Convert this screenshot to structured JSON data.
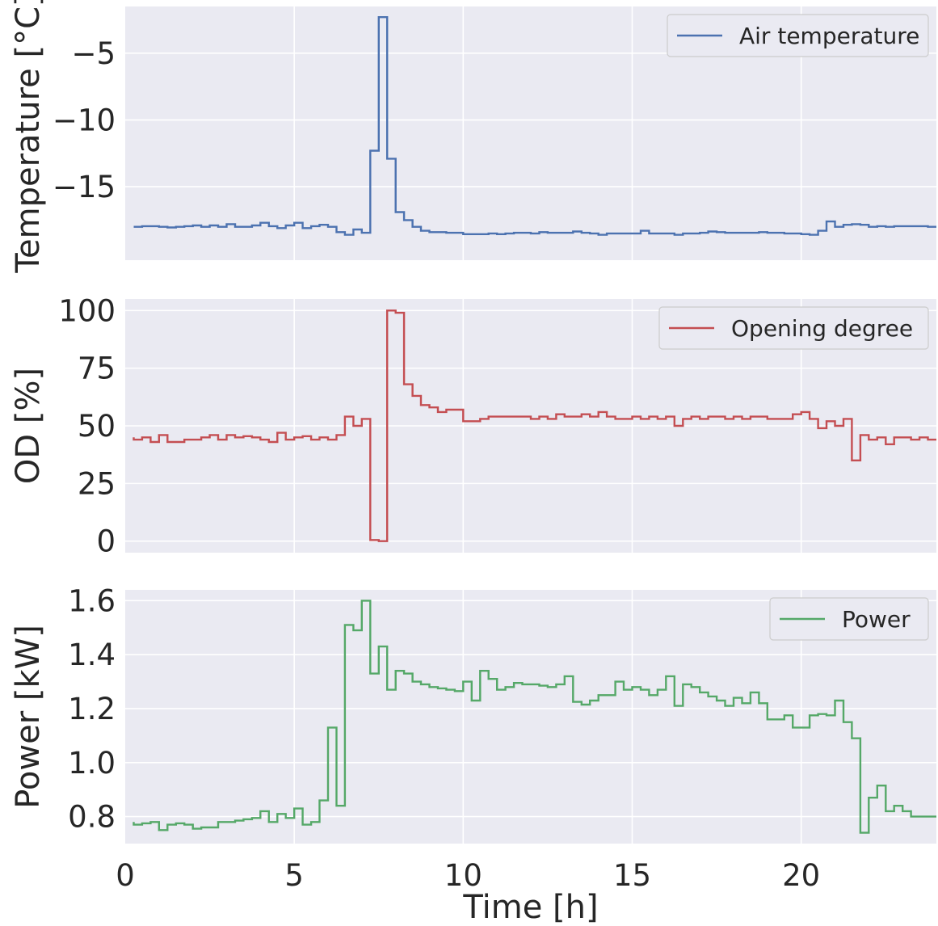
{
  "chart_data": [
    {
      "type": "line",
      "step": true,
      "color": "#4c72b0",
      "ylabel": "Temperature [°C]",
      "xlabel": "",
      "xlim": [
        0,
        24
      ],
      "ylim": [
        -20.5,
        -1.5
      ],
      "yticks": [
        -5,
        -10,
        -15
      ],
      "ytick_labels": [
        "−5",
        "−10",
        "−15"
      ],
      "xticks": [
        5,
        10,
        15,
        20
      ],
      "xtick_labels": [],
      "grid": true,
      "legend_position": "top-right",
      "series": [
        {
          "name": "Air temperature",
          "x": [
            0.25,
            0.5,
            0.75,
            1,
            1.25,
            1.5,
            1.75,
            2,
            2.25,
            2.5,
            2.75,
            3,
            3.25,
            3.5,
            3.75,
            4,
            4.25,
            4.5,
            4.75,
            5,
            5.25,
            5.5,
            5.75,
            6,
            6.25,
            6.5,
            6.75,
            7,
            7.25,
            7.5,
            7.75,
            8,
            8.25,
            8.5,
            8.75,
            9,
            9.25,
            9.5,
            9.75,
            10,
            10.25,
            10.5,
            10.75,
            11,
            11.25,
            11.5,
            11.75,
            12,
            12.25,
            12.5,
            12.75,
            13,
            13.25,
            13.5,
            13.75,
            14,
            14.25,
            14.5,
            14.75,
            15,
            15.25,
            15.5,
            15.75,
            16,
            16.25,
            16.5,
            16.75,
            17,
            17.25,
            17.5,
            17.75,
            18,
            18.25,
            18.5,
            18.75,
            19,
            19.25,
            19.5,
            19.75,
            20,
            20.25,
            20.5,
            20.75,
            21,
            21.25,
            21.5,
            21.75,
            22,
            22.25,
            22.5,
            22.75,
            23,
            23.25,
            23.5,
            23.75,
            24
          ],
          "y": [
            -18.0,
            -18.0,
            -17.95,
            -17.95,
            -18.0,
            -18.05,
            -18.0,
            -17.95,
            -17.9,
            -18.0,
            -17.9,
            -18.0,
            -17.8,
            -18.0,
            -18.0,
            -17.9,
            -17.7,
            -17.95,
            -18.1,
            -17.9,
            -17.7,
            -18.1,
            -17.95,
            -17.85,
            -18.0,
            -18.4,
            -18.6,
            -18.2,
            -18.45,
            -12.3,
            -2.3,
            -12.9,
            -16.9,
            -17.5,
            -18.0,
            -18.3,
            -18.4,
            -18.4,
            -18.45,
            -18.45,
            -18.55,
            -18.55,
            -18.55,
            -18.5,
            -18.55,
            -18.5,
            -18.45,
            -18.45,
            -18.5,
            -18.4,
            -18.45,
            -18.45,
            -18.45,
            -18.35,
            -18.45,
            -18.5,
            -18.6,
            -18.5,
            -18.5,
            -18.5,
            -18.5,
            -18.3,
            -18.5,
            -18.5,
            -18.5,
            -18.6,
            -18.5,
            -18.5,
            -18.45,
            -18.35,
            -18.4,
            -18.45,
            -18.45,
            -18.45,
            -18.45,
            -18.4,
            -18.45,
            -18.45,
            -18.5,
            -18.5,
            -18.55,
            -18.6,
            -18.3,
            -17.6,
            -18.0,
            -17.85,
            -17.8,
            -17.85,
            -18.0,
            -17.95,
            -18.0,
            -17.95,
            -17.95,
            -17.95,
            -17.95,
            -18.0
          ]
        }
      ]
    },
    {
      "type": "line",
      "step": true,
      "color": "#c44e52",
      "ylabel": "OD [%]",
      "xlabel": "",
      "xlim": [
        0,
        24
      ],
      "ylim": [
        -5,
        105
      ],
      "yticks": [
        100,
        75,
        50,
        25,
        0
      ],
      "ytick_labels": [
        "100",
        "75",
        "50",
        "25",
        "0"
      ],
      "xticks": [
        5,
        10,
        15,
        20
      ],
      "xtick_labels": [],
      "grid": true,
      "legend_position": "top-right",
      "series": [
        {
          "name": "Opening degree",
          "x": [
            0.25,
            0.5,
            0.75,
            1,
            1.25,
            1.5,
            1.75,
            2,
            2.25,
            2.5,
            2.75,
            3,
            3.25,
            3.5,
            3.75,
            4,
            4.25,
            4.5,
            4.75,
            5,
            5.25,
            5.5,
            5.75,
            6,
            6.25,
            6.5,
            6.75,
            7,
            7.25,
            7.5,
            7.75,
            8,
            8.25,
            8.5,
            8.75,
            9,
            9.25,
            9.5,
            9.75,
            10,
            10.25,
            10.5,
            10.75,
            11,
            11.25,
            11.5,
            11.75,
            12,
            12.25,
            12.5,
            12.75,
            13,
            13.25,
            13.5,
            13.75,
            14,
            14.25,
            14.5,
            14.75,
            15,
            15.25,
            15.5,
            15.75,
            16,
            16.25,
            16.5,
            16.75,
            17,
            17.25,
            17.5,
            17.75,
            18,
            18.25,
            18.5,
            18.75,
            19,
            19.25,
            19.5,
            19.75,
            20,
            20.25,
            20.5,
            20.75,
            21,
            21.25,
            21.5,
            21.75,
            22,
            22.25,
            22.5,
            22.75,
            23,
            23.25,
            23.5,
            23.75,
            24
          ],
          "y": [
            45,
            44,
            45,
            43,
            46,
            43,
            43,
            44,
            44,
            45,
            46,
            44,
            46,
            45,
            45.5,
            45,
            44,
            43,
            47,
            44,
            45,
            45.5,
            44,
            45,
            44,
            46,
            54,
            50,
            53,
            0.5,
            0,
            100,
            99,
            68,
            63,
            59,
            58,
            56,
            57,
            57,
            52,
            52,
            53,
            54,
            54,
            54,
            54,
            54,
            53,
            54,
            53,
            55,
            54,
            54,
            55,
            54,
            56,
            54,
            53,
            53,
            54,
            53,
            54,
            53,
            54,
            50,
            53,
            54,
            53,
            54,
            54,
            53,
            54,
            53,
            54,
            54,
            53,
            53,
            53,
            55,
            56,
            53,
            49,
            52,
            50,
            53,
            35,
            46,
            44,
            45,
            42,
            45,
            45,
            44,
            45,
            44
          ]
        }
      ]
    },
    {
      "type": "line",
      "step": true,
      "color": "#55a868",
      "ylabel": "Power [kW]",
      "xlabel": "Time [h]",
      "xlim": [
        0,
        24
      ],
      "ylim": [
        0.7,
        1.64
      ],
      "yticks": [
        1.6,
        1.4,
        1.2,
        1.0,
        0.8
      ],
      "ytick_labels": [
        "1.6",
        "1.4",
        "1.2",
        "1.0",
        "0.8"
      ],
      "xticks": [
        0,
        5,
        10,
        15,
        20
      ],
      "xtick_labels": [
        "0",
        "5",
        "10",
        "15",
        "20"
      ],
      "grid": true,
      "legend_position": "top-right",
      "series": [
        {
          "name": "Power",
          "x": [
            0.25,
            0.5,
            0.75,
            1,
            1.25,
            1.5,
            1.75,
            2,
            2.25,
            2.5,
            2.75,
            3,
            3.25,
            3.5,
            3.75,
            4,
            4.25,
            4.5,
            4.75,
            5,
            5.25,
            5.5,
            5.75,
            6,
            6.25,
            6.5,
            6.75,
            7,
            7.25,
            7.5,
            7.75,
            8,
            8.25,
            8.5,
            8.75,
            9,
            9.25,
            9.5,
            9.75,
            10,
            10.25,
            10.5,
            10.75,
            11,
            11.25,
            11.5,
            11.75,
            12,
            12.25,
            12.5,
            12.75,
            13,
            13.25,
            13.5,
            13.75,
            14,
            14.25,
            14.5,
            14.75,
            15,
            15.25,
            15.5,
            15.75,
            16,
            16.25,
            16.5,
            16.75,
            17,
            17.25,
            17.5,
            17.75,
            18,
            18.25,
            18.5,
            18.75,
            19,
            19.25,
            19.5,
            19.75,
            20,
            20.25,
            20.5,
            20.75,
            21,
            21.25,
            21.5,
            21.75,
            22,
            22.25,
            22.5,
            22.75,
            23,
            23.25,
            23.5,
            23.75,
            24
          ],
          "y": [
            0.78,
            0.77,
            0.775,
            0.78,
            0.75,
            0.77,
            0.775,
            0.77,
            0.755,
            0.76,
            0.76,
            0.78,
            0.78,
            0.785,
            0.79,
            0.795,
            0.82,
            0.78,
            0.81,
            0.795,
            0.83,
            0.77,
            0.78,
            0.86,
            1.13,
            0.84,
            1.51,
            1.49,
            1.6,
            1.33,
            1.43,
            1.27,
            1.34,
            1.33,
            1.3,
            1.29,
            1.28,
            1.275,
            1.27,
            1.265,
            1.3,
            1.23,
            1.34,
            1.31,
            1.27,
            1.28,
            1.295,
            1.29,
            1.29,
            1.285,
            1.28,
            1.29,
            1.32,
            1.225,
            1.215,
            1.23,
            1.25,
            1.25,
            1.3,
            1.27,
            1.28,
            1.27,
            1.25,
            1.27,
            1.32,
            1.21,
            1.29,
            1.28,
            1.26,
            1.245,
            1.23,
            1.21,
            1.24,
            1.22,
            1.26,
            1.22,
            1.16,
            1.16,
            1.175,
            1.13,
            1.13,
            1.175,
            1.18,
            1.175,
            1.23,
            1.15,
            1.09,
            0.74,
            0.87,
            0.915,
            0.82,
            0.84,
            0.82,
            0.8,
            0.8,
            0.8
          ]
        }
      ]
    }
  ]
}
